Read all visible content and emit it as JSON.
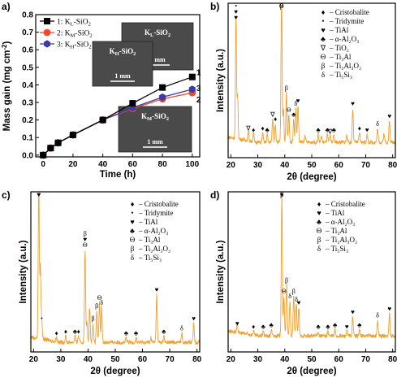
{
  "chart_data": [
    {
      "panel": "a)",
      "type": "line",
      "xlabel": "Time (h)",
      "ylabel": "Mass gain (mg cm",
      "ylabel_sup": "-2",
      "ylabel_end": ")",
      "xlim": [
        -5,
        105
      ],
      "ylim": [
        -0.01,
        0.8
      ],
      "xticks": [
        0,
        20,
        40,
        60,
        80,
        100
      ],
      "yticks": [
        0.0,
        0.1,
        0.2,
        0.3,
        0.4,
        0.5,
        0.6,
        0.7,
        0.8
      ],
      "legend": "top-left",
      "series": [
        {
          "name": "1: K",
          "sub": "L",
          "suffix": "-SiO",
          "sub2": "2",
          "end_label": "1",
          "color": "#000000",
          "marker": "square",
          "x": [
            0,
            5,
            10,
            20,
            40,
            60,
            80,
            100
          ],
          "y": [
            0.0,
            0.04,
            0.07,
            0.115,
            0.2,
            0.295,
            0.385,
            0.445
          ]
        },
        {
          "name": "2: K",
          "sub": "M",
          "suffix": "-SiO",
          "sub2": "2",
          "end_label": "2",
          "color": "#ee4a2a",
          "marker": "circle",
          "x": [
            0,
            5,
            10,
            20,
            40,
            60,
            80,
            100
          ],
          "y": [
            0.0,
            0.04,
            0.07,
            0.115,
            0.2,
            0.265,
            0.32,
            0.355
          ]
        },
        {
          "name": "3: K",
          "sub": "H",
          "suffix": "-SiO",
          "sub2": "2",
          "end_label": "3",
          "color": "#3a3aa8",
          "marker": "hexagon",
          "x": [
            0,
            5,
            10,
            20,
            40,
            60,
            80,
            100
          ],
          "y": [
            0.0,
            0.04,
            0.07,
            0.115,
            0.2,
            0.27,
            0.33,
            0.375
          ]
        }
      ],
      "insets": [
        {
          "label": "K",
          "sub": "L",
          "suffix": "-SiO",
          "sub2": "2",
          "scale": "1 mm"
        },
        {
          "label": "K",
          "sub": "H",
          "suffix": "-SiO",
          "sub2": "2",
          "scale": "1 mm"
        },
        {
          "label": "K",
          "sub": "M",
          "suffix": "-SiO",
          "sub2": "2",
          "scale": "1 mm"
        }
      ]
    },
    {
      "panel": "b)",
      "type": "line",
      "xlabel": "2θ (degree)",
      "ylabel": "Intensity (a.u.)",
      "xlim": [
        19,
        81
      ],
      "xticks": [
        20,
        30,
        40,
        50,
        60,
        70,
        80
      ],
      "color": "#f0a030",
      "baseline": 0.1,
      "peaks": [
        [
          21.9,
          0.78
        ],
        [
          22.5,
          0.28
        ],
        [
          26.5,
          0.06
        ],
        [
          28.4,
          0.05
        ],
        [
          31.8,
          0.06
        ],
        [
          33.5,
          0.05
        ],
        [
          35.5,
          0.15
        ],
        [
          36.5,
          0.12
        ],
        [
          38.8,
          0.95
        ],
        [
          39.5,
          0.22
        ],
        [
          40.6,
          0.32
        ],
        [
          41.5,
          0.18
        ],
        [
          43.3,
          0.15
        ],
        [
          44.1,
          0.22
        ],
        [
          44.9,
          0.24
        ],
        [
          47.5,
          0.05
        ],
        [
          52.4,
          0.05
        ],
        [
          53.6,
          0.04
        ],
        [
          55.8,
          0.05
        ],
        [
          56.8,
          0.04
        ],
        [
          58.2,
          0.05
        ],
        [
          63.0,
          0.05
        ],
        [
          65.2,
          0.22
        ],
        [
          67.7,
          0.06
        ],
        [
          70.5,
          0.05
        ],
        [
          74.4,
          0.09
        ],
        [
          76.8,
          0.06
        ],
        [
          78.8,
          0.14
        ]
      ],
      "legend": [
        {
          "sym": "♦",
          "text": "– Cristobalite"
        },
        {
          "sym": "•",
          "text": "– Tridymite"
        },
        {
          "sym": "♥",
          "text": "– TiAl"
        },
        {
          "sym": "♣",
          "text": "– α-Al₂O₃"
        },
        {
          "sym": "∇",
          "text": "– TiO₂"
        },
        {
          "sym": "Θ",
          "text": "– Ti₃Al"
        },
        {
          "sym": "β",
          "text": "– Ti₂Al₃O₂"
        },
        {
          "sym": "δ",
          "text": "– Ti₅Si₃"
        }
      ],
      "annotations": [
        {
          "x": 21.9,
          "syms": [
            "•",
            "♥",
            "♥"
          ]
        },
        {
          "x": 26.5,
          "syms": [
            "∇"
          ]
        },
        {
          "x": 28.4,
          "syms": [
            "♦"
          ]
        },
        {
          "x": 31.8,
          "syms": [
            "♦"
          ]
        },
        {
          "x": 33.5,
          "syms": [
            "♣"
          ]
        },
        {
          "x": 35.5,
          "syms": [
            "∇"
          ]
        },
        {
          "x": 36.5,
          "syms": [
            "♦"
          ]
        },
        {
          "x": 38.8,
          "syms": [
            "β",
            "Θ"
          ]
        },
        {
          "x": 40.6,
          "syms": [
            "β"
          ]
        },
        {
          "x": 41.5,
          "syms": [
            "Θ"
          ]
        },
        {
          "x": 43.3,
          "syms": [
            "♣"
          ]
        },
        {
          "x": 44.1,
          "syms": [
            "δ"
          ]
        },
        {
          "x": 44.9,
          "syms": [
            "♥"
          ]
        },
        {
          "x": 52.4,
          "syms": [
            "♣"
          ]
        },
        {
          "x": 55.8,
          "syms": [
            "♣"
          ]
        },
        {
          "x": 56.8,
          "syms": [
            "∇"
          ]
        },
        {
          "x": 58.2,
          "syms": [
            "♣"
          ]
        },
        {
          "x": 65.2,
          "syms": [
            "♥"
          ]
        },
        {
          "x": 67.7,
          "syms": [
            "♦"
          ]
        },
        {
          "x": 70.5,
          "syms": [
            "♥"
          ]
        },
        {
          "x": 74.4,
          "syms": [
            "δ"
          ]
        },
        {
          "x": 78.8,
          "syms": [
            "♥"
          ]
        }
      ]
    },
    {
      "panel": "c)",
      "type": "line",
      "xlabel": "2θ (degree)",
      "ylabel": "Intensity (a.u.)",
      "xlim": [
        19,
        81
      ],
      "xticks": [
        20,
        30,
        40,
        50,
        60,
        70,
        80
      ],
      "color": "#f0a030",
      "baseline": 0.06,
      "peaks": [
        [
          21.9,
          0.98
        ],
        [
          22.5,
          0.45
        ],
        [
          23.0,
          0.12
        ],
        [
          28.4,
          0.03
        ],
        [
          31.8,
          0.04
        ],
        [
          35.2,
          0.04
        ],
        [
          36.5,
          0.04
        ],
        [
          38.9,
          0.58
        ],
        [
          39.6,
          0.12
        ],
        [
          40.6,
          0.22
        ],
        [
          41.8,
          0.12
        ],
        [
          43.2,
          0.2
        ],
        [
          44.2,
          0.25
        ],
        [
          45.0,
          0.22
        ],
        [
          54.0,
          0.03
        ],
        [
          57.6,
          0.03
        ],
        [
          63.1,
          0.03
        ],
        [
          65.2,
          0.3
        ],
        [
          67.8,
          0.04
        ],
        [
          74.4,
          0.06
        ],
        [
          78.8,
          0.12
        ]
      ],
      "legend": [
        {
          "sym": "♦",
          "text": "– Cristobalite"
        },
        {
          "sym": "•",
          "text": "– Tridymite"
        },
        {
          "sym": "♥",
          "text": "– TiAl"
        },
        {
          "sym": "♣",
          "text": "– α-Al₂O₃"
        },
        {
          "sym": "Θ",
          "text": "– Ti₃Al"
        },
        {
          "sym": "β",
          "text": "– Ti₂Al₃O₂"
        },
        {
          "sym": "δ",
          "text": "– Ti₅Si₃"
        }
      ],
      "annotations": [
        {
          "x": 21.9,
          "syms": [
            "•",
            "♥",
            "♥"
          ]
        },
        {
          "x": 23.0,
          "syms": [
            "•"
          ]
        },
        {
          "x": 28.4,
          "syms": [
            "♦"
          ]
        },
        {
          "x": 31.8,
          "syms": [
            "♦"
          ]
        },
        {
          "x": 35.2,
          "syms": [
            "♣"
          ]
        },
        {
          "x": 36.5,
          "syms": [
            "♦"
          ]
        },
        {
          "x": 38.9,
          "syms": [
            "β",
            "♥",
            "Θ"
          ]
        },
        {
          "x": 41.8,
          "syms": [
            "β"
          ]
        },
        {
          "x": 43.2,
          "syms": [
            "β"
          ]
        },
        {
          "x": 44.2,
          "syms": [
            "Θ"
          ]
        },
        {
          "x": 45.0,
          "syms": [
            "δ"
          ]
        },
        {
          "x": 54.0,
          "syms": [
            "♣"
          ]
        },
        {
          "x": 57.6,
          "syms": [
            "♣"
          ]
        },
        {
          "x": 65.2,
          "syms": [
            "♥"
          ]
        },
        {
          "x": 67.8,
          "syms": [
            "♣"
          ]
        },
        {
          "x": 74.4,
          "syms": [
            "δ"
          ]
        },
        {
          "x": 78.8,
          "syms": [
            "♥"
          ]
        }
      ]
    },
    {
      "panel": "d)",
      "type": "line",
      "xlabel": "2θ (degree)",
      "ylabel": "Intensity (a.u.)",
      "xlim": [
        19,
        81
      ],
      "xticks": [
        20,
        30,
        40,
        50,
        60,
        70,
        80
      ],
      "color": "#f0a030",
      "baseline": 0.1,
      "peaks": [
        [
          22.4,
          0.05
        ],
        [
          28.4,
          0.03
        ],
        [
          32.0,
          0.03
        ],
        [
          35.0,
          0.04
        ],
        [
          38.9,
          0.88
        ],
        [
          39.7,
          0.25
        ],
        [
          40.7,
          0.32
        ],
        [
          41.9,
          0.22
        ],
        [
          43.3,
          0.25
        ],
        [
          44.3,
          0.2
        ],
        [
          45.2,
          0.18
        ],
        [
          52.4,
          0.03
        ],
        [
          56.0,
          0.03
        ],
        [
          58.6,
          0.04
        ],
        [
          63.0,
          0.03
        ],
        [
          65.2,
          0.12
        ],
        [
          67.7,
          0.04
        ],
        [
          74.4,
          0.1
        ],
        [
          78.8,
          0.14
        ]
      ],
      "legend": [
        {
          "sym": "♦",
          "text": "– Cristobalite"
        },
        {
          "sym": "♥",
          "text": "– TiAl"
        },
        {
          "sym": "♣",
          "text": "– α-Al₂O₃"
        },
        {
          "sym": "Θ",
          "text": "– Ti₃Al"
        },
        {
          "sym": "β",
          "text": "– Ti₂Al₃O₂"
        },
        {
          "sym": "δ",
          "text": "– Ti₅Si₃"
        }
      ],
      "annotations": [
        {
          "x": 22.4,
          "syms": [
            "♥"
          ]
        },
        {
          "x": 28.4,
          "syms": [
            "♦"
          ]
        },
        {
          "x": 32.0,
          "syms": [
            "♣"
          ]
        },
        {
          "x": 35.0,
          "syms": [
            "♣"
          ]
        },
        {
          "x": 38.9,
          "syms": [
            "β",
            "♥"
          ]
        },
        {
          "x": 39.7,
          "syms": [
            "Θ"
          ]
        },
        {
          "x": 40.7,
          "syms": [
            "β"
          ]
        },
        {
          "x": 41.9,
          "syms": [
            "δ"
          ]
        },
        {
          "x": 43.3,
          "syms": [
            "β"
          ]
        },
        {
          "x": 44.3,
          "syms": [
            "δ"
          ]
        },
        {
          "x": 45.2,
          "syms": [
            "♥"
          ]
        },
        {
          "x": 52.4,
          "syms": [
            "♣"
          ]
        },
        {
          "x": 56.0,
          "syms": [
            "♣"
          ]
        },
        {
          "x": 58.6,
          "syms": [
            "♣"
          ]
        },
        {
          "x": 63.0,
          "syms": [
            "♥"
          ]
        },
        {
          "x": 65.2,
          "syms": [
            "♥"
          ]
        },
        {
          "x": 67.7,
          "syms": [
            "♣"
          ]
        },
        {
          "x": 74.4,
          "syms": [
            "δ"
          ]
        },
        {
          "x": 78.8,
          "syms": [
            "♥"
          ]
        }
      ]
    }
  ]
}
